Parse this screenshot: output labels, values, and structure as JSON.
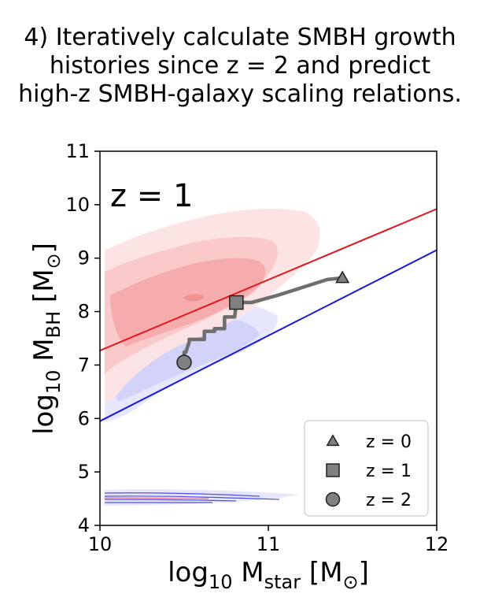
{
  "heading": {
    "line1": "4) Iteratively calculate SMBH growth",
    "line2": "histories since z = 2 and predict",
    "line3": "high-z SMBH-galaxy scaling relations."
  },
  "chart_data": {
    "type": "line",
    "panel_label": "z = 1",
    "xlabel": "log10 Mstar [M⊙]",
    "ylabel": "log10 MBH [M⊙]",
    "xlim": [
      10,
      12
    ],
    "ylim": [
      4,
      11
    ],
    "xticks": [
      "10",
      "11",
      "12"
    ],
    "yticks": [
      "4",
      "5",
      "6",
      "7",
      "8",
      "9",
      "10",
      "11"
    ],
    "colors": {
      "red_line": "#e0191e",
      "blue_line": "#1a1ad2",
      "track": "#6e6e6e",
      "marker": "#808080",
      "red_contour": "#f2a0a0",
      "blue_contour": "#b8b8f4"
    },
    "relations": [
      {
        "name": "red relation",
        "color": "#e0191e",
        "x": [
          10,
          12
        ],
        "y": [
          7.27,
          9.92
        ]
      },
      {
        "name": "blue relation",
        "color": "#1a1ad2",
        "x": [
          10,
          12
        ],
        "y": [
          5.95,
          9.15
        ]
      }
    ],
    "growth_track": {
      "x": [
        10.5,
        10.5,
        10.51,
        10.53,
        10.53,
        10.62,
        10.62,
        10.68,
        10.68,
        10.74,
        10.74,
        10.8,
        10.81,
        10.81,
        10.9,
        10.9,
        11.05,
        11.35,
        11.44
      ],
      "y": [
        7.05,
        7.24,
        7.24,
        7.43,
        7.48,
        7.48,
        7.63,
        7.63,
        7.68,
        7.68,
        7.9,
        7.9,
        8.17,
        8.17,
        8.17,
        8.17,
        8.3,
        8.6,
        8.63
      ]
    },
    "markers": [
      {
        "label": "z = 0",
        "shape": "triangle",
        "x": 11.44,
        "y": 8.63
      },
      {
        "label": "z = 1",
        "shape": "square",
        "x": 10.81,
        "y": 8.17
      },
      {
        "label": "z = 2",
        "shape": "circle",
        "x": 10.5,
        "y": 7.05
      }
    ],
    "legend": {
      "placement": "lower-right",
      "entries": [
        "z = 0",
        "z = 1",
        "z = 2"
      ]
    }
  }
}
